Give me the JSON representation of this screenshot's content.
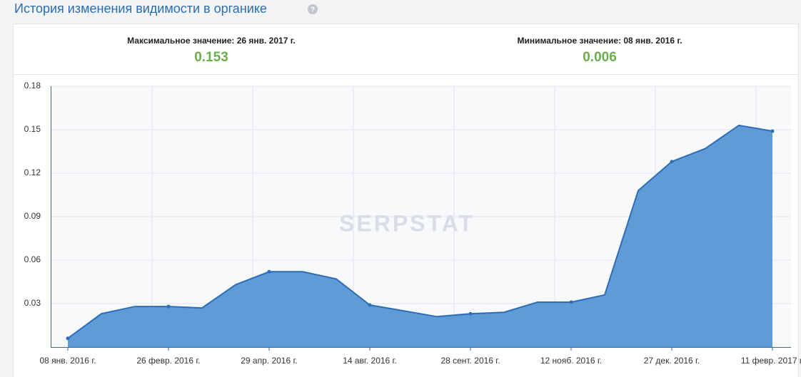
{
  "title": "История изменения видимости в органике",
  "stats": [
    {
      "label": "Максимальное значение: 26 янв. 2017 г.",
      "value": "0.153"
    },
    {
      "label": "Минимальное значение: 08 янв. 2016 г.",
      "value": "0.006"
    }
  ],
  "chart_data": {
    "type": "area",
    "watermark": "SERPSTAT",
    "categories": [
      "08 янв. 2016 г.",
      null,
      null,
      "26 февр. 2016 г.",
      null,
      null,
      "29 апр. 2016 г.",
      null,
      null,
      "14 авг. 2016 г.",
      null,
      null,
      "28 сент. 2016 г.",
      null,
      null,
      "12 нояб. 2016 г.",
      null,
      null,
      "27 дек. 2016 г.",
      null,
      null,
      "11 февр. 2017 г."
    ],
    "values": [
      0.006,
      0.023,
      0.028,
      0.028,
      0.027,
      0.043,
      0.052,
      0.052,
      0.047,
      0.029,
      0.025,
      0.021,
      0.023,
      0.024,
      0.031,
      0.031,
      0.036,
      0.108,
      0.128,
      0.137,
      0.153,
      0.149
    ],
    "color": "#5f9bd6",
    "line_color": "#2e6db5",
    "ylim": [
      0,
      0.18
    ],
    "yticks": [
      0.03,
      0.06,
      0.09,
      0.12,
      0.15,
      0.18
    ],
    "grid": true
  }
}
